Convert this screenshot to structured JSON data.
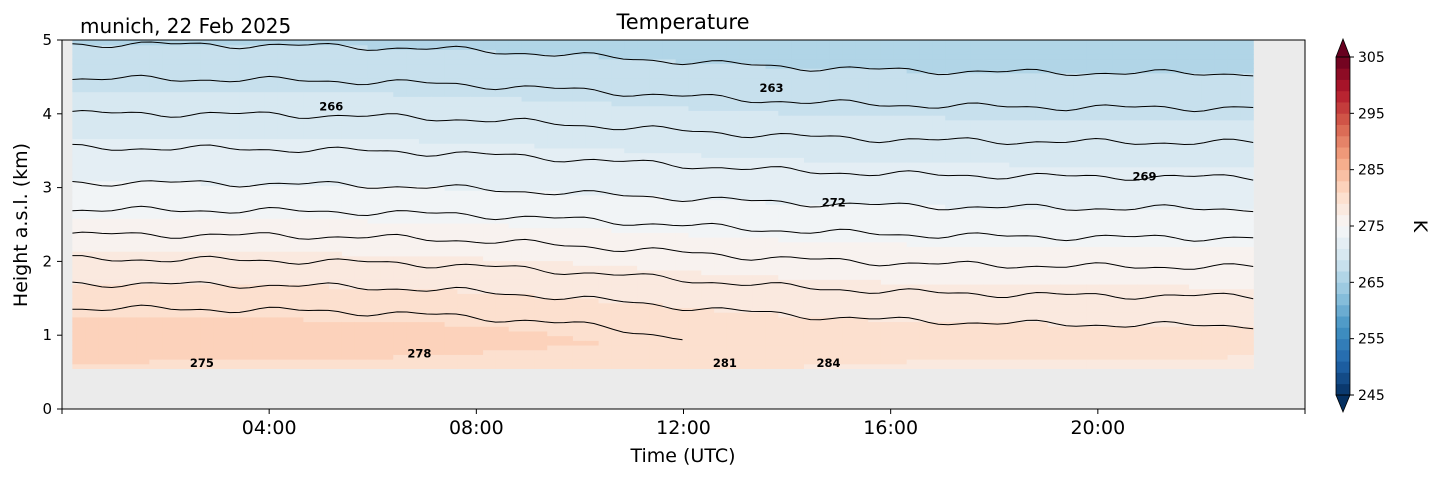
{
  "chart_data": {
    "type": "heatmap",
    "title": "Temperature",
    "subtitle": "munich, 22 Feb 2025",
    "xlabel": "Time (UTC)",
    "ylabel": "Height a.s.l. (km)",
    "xlim": [
      0,
      24
    ],
    "ylim": [
      0,
      5
    ],
    "x_tick_labels": [
      "04:00",
      "08:00",
      "12:00",
      "16:00",
      "20:00"
    ],
    "y_tick_labels": [
      "0",
      "1",
      "2",
      "3",
      "4",
      "5"
    ],
    "data_extent": {
      "x": [
        0.2,
        23
      ],
      "y": [
        0.55,
        5
      ]
    },
    "colorbar": {
      "label": "K",
      "range": [
        245,
        305
      ],
      "ticks": [
        "245",
        "255",
        "265",
        "275",
        "285",
        "295",
        "305"
      ],
      "colormap": "RdBu_r",
      "extend": "both"
    },
    "contour_labels": [
      {
        "text": "263",
        "x": 13.7,
        "y": 4.35
      },
      {
        "text": "266",
        "x": 5.2,
        "y": 4.1
      },
      {
        "text": "269",
        "x": 20.9,
        "y": 3.15
      },
      {
        "text": "272",
        "x": 14.9,
        "y": 2.8
      },
      {
        "text": "275",
        "x": 2.7,
        "y": 0.62
      },
      {
        "text": "278",
        "x": 6.9,
        "y": 0.75
      },
      {
        "text": "281",
        "x": 12.8,
        "y": 0.62
      },
      {
        "text": "284",
        "x": 14.8,
        "y": 0.62
      }
    ],
    "background_color": "#ebebeb"
  }
}
